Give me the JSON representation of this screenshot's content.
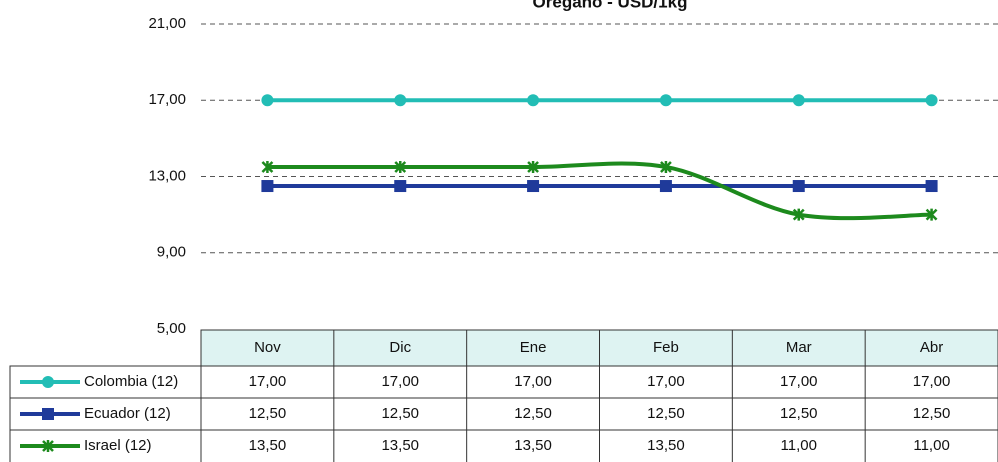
{
  "chart_data": {
    "type": "line",
    "title": "Oregano - USD/1kg",
    "categories": [
      "Nov",
      "Dic",
      "Ene",
      "Feb",
      "Mar",
      "Abr"
    ],
    "series": [
      {
        "name": "Colombia (12)",
        "color": "#22bdb5",
        "marker": "circle",
        "values": [
          17,
          17,
          17,
          17,
          17,
          17
        ],
        "value_labels": [
          "17,00",
          "17,00",
          "17,00",
          "17,00",
          "17,00",
          "17,00"
        ]
      },
      {
        "name": "Ecuador (12)",
        "color": "#1f3a9a",
        "marker": "square",
        "values": [
          12.5,
          12.5,
          12.5,
          12.5,
          12.5,
          12.5
        ],
        "value_labels": [
          "12,50",
          "12,50",
          "12,50",
          "12,50",
          "12,50",
          "12,50"
        ]
      },
      {
        "name": "Israel (12)",
        "color": "#1d8a1d",
        "marker": "star",
        "smooth": true,
        "values": [
          13.5,
          13.5,
          13.5,
          13.5,
          11,
          11
        ],
        "value_labels": [
          "13,50",
          "13,50",
          "13,50",
          "13,50",
          "11,00",
          "11,00"
        ]
      }
    ],
    "ylim": [
      5,
      21
    ],
    "yticks": [
      {
        "value": 5,
        "label": "5,00"
      },
      {
        "value": 9,
        "label": "9,00"
      },
      {
        "value": 13,
        "label": "13,00"
      },
      {
        "value": 17,
        "label": "17,00"
      },
      {
        "value": 21,
        "label": "21,00"
      }
    ],
    "grid": true
  }
}
